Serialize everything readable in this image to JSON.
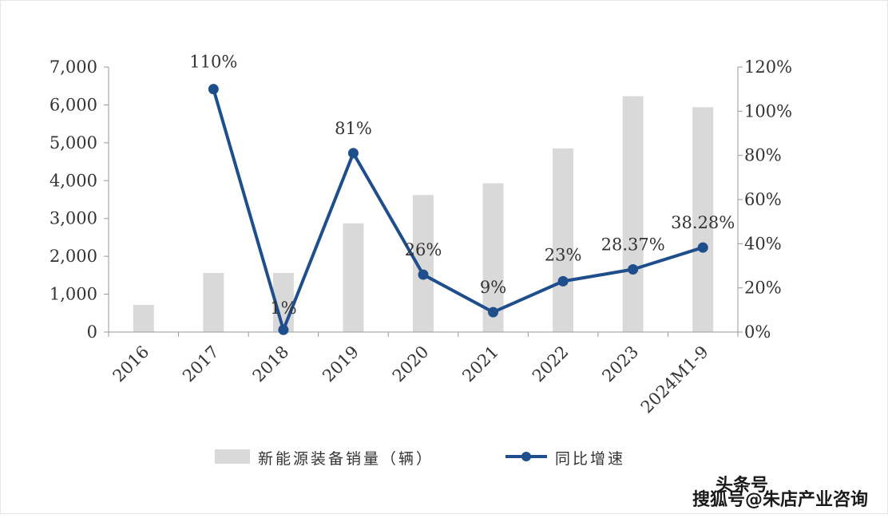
{
  "chart_data": {
    "type": "bar+line",
    "categories": [
      "2016",
      "2017",
      "2018",
      "2019",
      "2020",
      "2021",
      "2022",
      "2023",
      "2024M1-9"
    ],
    "bar_series": {
      "name": "新能源装备销量（辆）",
      "values": [
        720,
        1560,
        1560,
        2870,
        3620,
        3930,
        4850,
        6230,
        5940
      ],
      "color": "#d9d9d9"
    },
    "line_series": {
      "name": "同比增速",
      "values": [
        null,
        110,
        1,
        81,
        26,
        9,
        23,
        28.37,
        38.28
      ],
      "labels": [
        "",
        "110%",
        "1%",
        "81%",
        "26%",
        "9%",
        "23%",
        "28.37%",
        "38.28%"
      ],
      "color": "#1f4e8c"
    },
    "y_left": {
      "min": 0,
      "max": 7000,
      "ticks": [
        "0",
        "1,000",
        "2,000",
        "3,000",
        "4,000",
        "5,000",
        "6,000",
        "7,000"
      ]
    },
    "y_right": {
      "min": 0,
      "max": 120,
      "ticks": [
        "0%",
        "20%",
        "40%",
        "60%",
        "80%",
        "100%",
        "120%"
      ]
    },
    "legend_position": "bottom",
    "grid": false
  },
  "watermark": {
    "line1": "头条号",
    "line2": "搜狐号@朱店产业咨询"
  }
}
